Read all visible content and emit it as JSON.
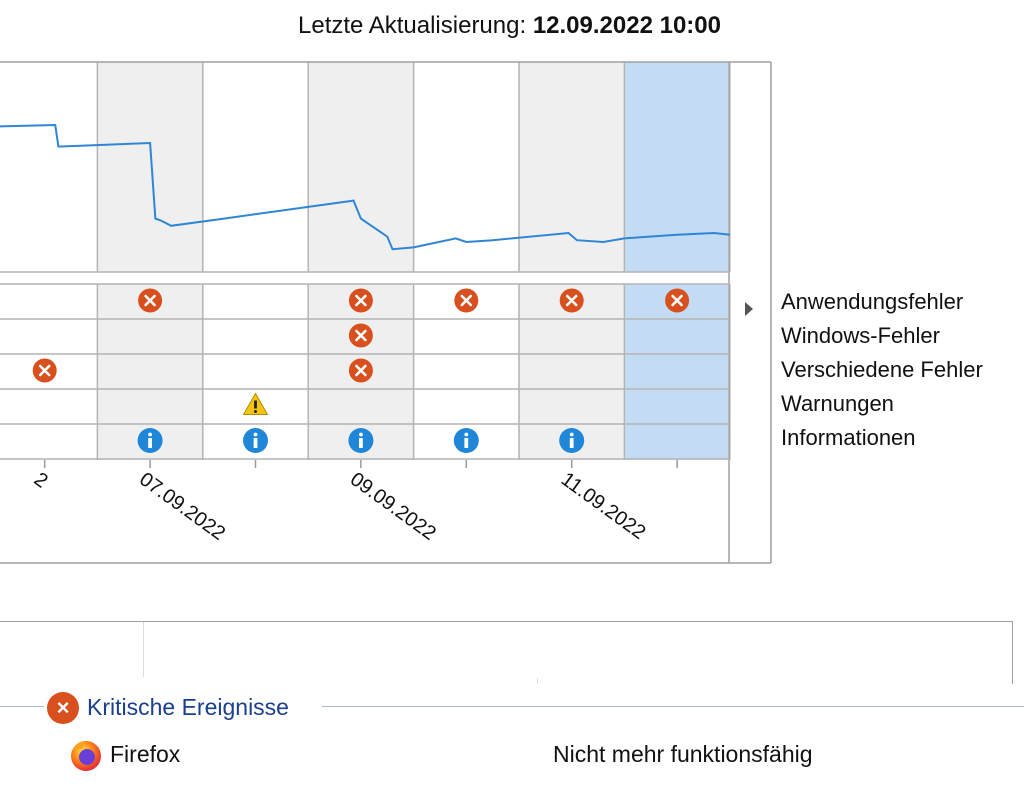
{
  "header": {
    "last_update_label": "Letzte Aktualisierung:",
    "last_update_value": "12.09.2022 10:00"
  },
  "reliability_chart": {
    "selected_column_index": 6,
    "x_ticks": [
      {
        "label": "2",
        "column": 0
      },
      {
        "label": "07.09.2022",
        "column": 1
      },
      {
        "label": "09.09.2022",
        "column": 3
      },
      {
        "label": "11.09.2022",
        "column": 5
      }
    ],
    "stability_series": [
      {
        "col": -0.6,
        "v": 0.72
      },
      {
        "col": -0.1,
        "v": 0.74
      },
      {
        "col": 0.6,
        "v": 0.75
      },
      {
        "col": 0.63,
        "v": 0.63
      },
      {
        "col": 1.5,
        "v": 0.65
      },
      {
        "col": 1.55,
        "v": 0.23
      },
      {
        "col": 1.6,
        "v": 0.22
      },
      {
        "col": 1.7,
        "v": 0.19
      },
      {
        "col": 2.2,
        "v": 0.23
      },
      {
        "col": 3.43,
        "v": 0.33
      },
      {
        "col": 3.5,
        "v": 0.23
      },
      {
        "col": 3.6,
        "v": 0.19
      },
      {
        "col": 3.75,
        "v": 0.13
      },
      {
        "col": 3.8,
        "v": 0.06
      },
      {
        "col": 4.0,
        "v": 0.07
      },
      {
        "col": 4.4,
        "v": 0.12
      },
      {
        "col": 4.5,
        "v": 0.1
      },
      {
        "col": 4.75,
        "v": 0.11
      },
      {
        "col": 5.47,
        "v": 0.15
      },
      {
        "col": 5.55,
        "v": 0.11
      },
      {
        "col": 5.8,
        "v": 0.1
      },
      {
        "col": 6.0,
        "v": 0.12
      },
      {
        "col": 6.5,
        "v": 0.14
      },
      {
        "col": 6.85,
        "v": 0.15
      },
      {
        "col": 7.0,
        "v": 0.14
      }
    ],
    "rows": [
      {
        "label": "Anwendungsfehler",
        "type": "error"
      },
      {
        "label": "Windows-Fehler",
        "type": "error"
      },
      {
        "label": "Verschiedene Fehler",
        "type": "error"
      },
      {
        "label": "Warnungen",
        "type": "warning"
      },
      {
        "label": "Informationen",
        "type": "info"
      }
    ],
    "events": [
      {
        "row": 0,
        "cols": [
          1,
          3,
          4,
          5,
          6
        ]
      },
      {
        "row": 1,
        "cols": [
          3
        ]
      },
      {
        "row": 2,
        "cols": [
          0,
          3
        ]
      },
      {
        "row": 3,
        "cols": [
          2
        ]
      },
      {
        "row": 4,
        "cols": [
          1,
          2,
          3,
          4,
          5
        ]
      }
    ],
    "colors": {
      "line": "#2e86d4",
      "shaded_column": "#efefef",
      "selected_column": "#c3dcf4",
      "grid": "#b4b4b4",
      "error": "#d9501f",
      "warning": "#f2c414",
      "info": "#1f86d8"
    },
    "icons": {
      "error": "error-icon",
      "warning": "warning-icon",
      "info": "info-icon"
    }
  },
  "details": {
    "section_title": "Kritische Ereignisse",
    "section_icon": "error-icon",
    "entries": [
      {
        "app": "Firefox",
        "icon": "firefox-icon",
        "status": "Nicht mehr funktionsfähig"
      }
    ]
  }
}
